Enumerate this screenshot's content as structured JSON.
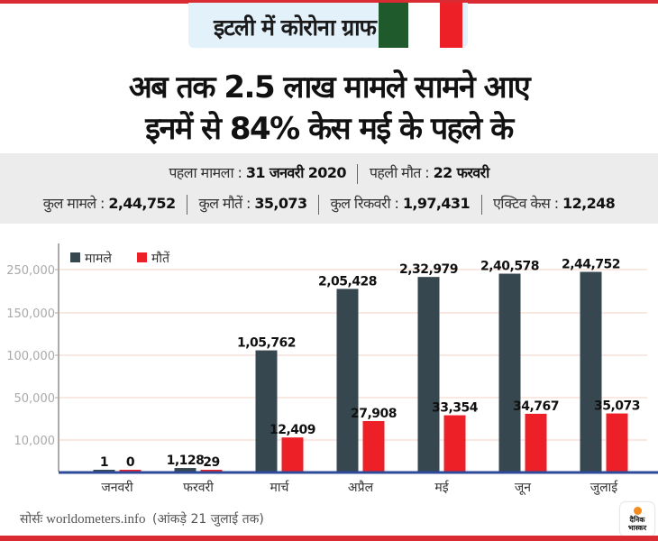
{
  "header": {
    "tag": "इटली में कोरोना ग्राफ",
    "flag_colors": [
      "#1f5a2c",
      "#ffffff",
      "#ee2027"
    ]
  },
  "headline": {
    "line1": "अब तक 2.5 लाख मामले सामने आए",
    "line2": "इनमें से 84% केस मई के पहले के"
  },
  "info": {
    "first_case_label": "पहला मामला :",
    "first_case_value": "31 जनवरी 2020",
    "first_death_label": "पहली मौत :",
    "first_death_value": "22 फरवरी",
    "total_cases_label": "कुल मामले :",
    "total_cases_value": "2,44,752",
    "total_deaths_label": "कुल मौतें :",
    "total_deaths_value": "35,073",
    "total_recovered_label": "कुल रिकवरी :",
    "total_recovered_value": "1,97,431",
    "active_label": "एक्टिव केस :",
    "active_value": "12,248"
  },
  "chart_data": {
    "type": "bar",
    "title": "इटली में कोरोना ग्राफ",
    "xlabel": "",
    "ylabel": "",
    "categories": [
      "जनवरी",
      "फरवरी",
      "मार्च",
      "अप्रैल",
      "मई",
      "जून",
      "जुलाई"
    ],
    "series": [
      {
        "name": "मामले",
        "color": "#37474f",
        "values": [
          1,
          1128,
          105762,
          205428,
          232979,
          240578,
          244752
        ],
        "labels": [
          "1",
          "1,128",
          "1,05,762",
          "2,05,428",
          "2,32,979",
          "2,40,578",
          "2,44,752"
        ]
      },
      {
        "name": "मौतें",
        "color": "#ee2027",
        "values": [
          0,
          29,
          12409,
          27908,
          33354,
          34767,
          35073
        ],
        "labels": [
          "0",
          "29",
          "12,409",
          "27,908",
          "33,354",
          "34,767",
          "35,073"
        ]
      }
    ],
    "yticks": [
      10000,
      50000,
      100000,
      150000,
      250000
    ],
    "ytick_labels": [
      "10,000",
      "50,000",
      "100,000",
      "150,000",
      "250,000"
    ],
    "ylim": [
      0,
      250000
    ],
    "grid": true,
    "legend": "top-left",
    "colors": {
      "grid": "#f6d3c6",
      "axis": "#aaaaaa",
      "baseline": "#2e4a9a"
    }
  },
  "footer": {
    "source_prefix": "सोर्सः",
    "source_site": "worldometers.info",
    "source_note": "(आंकड़े 21 जुलाई तक)",
    "logo_line1": "दैनिक",
    "logo_line2": "भास्कर"
  }
}
